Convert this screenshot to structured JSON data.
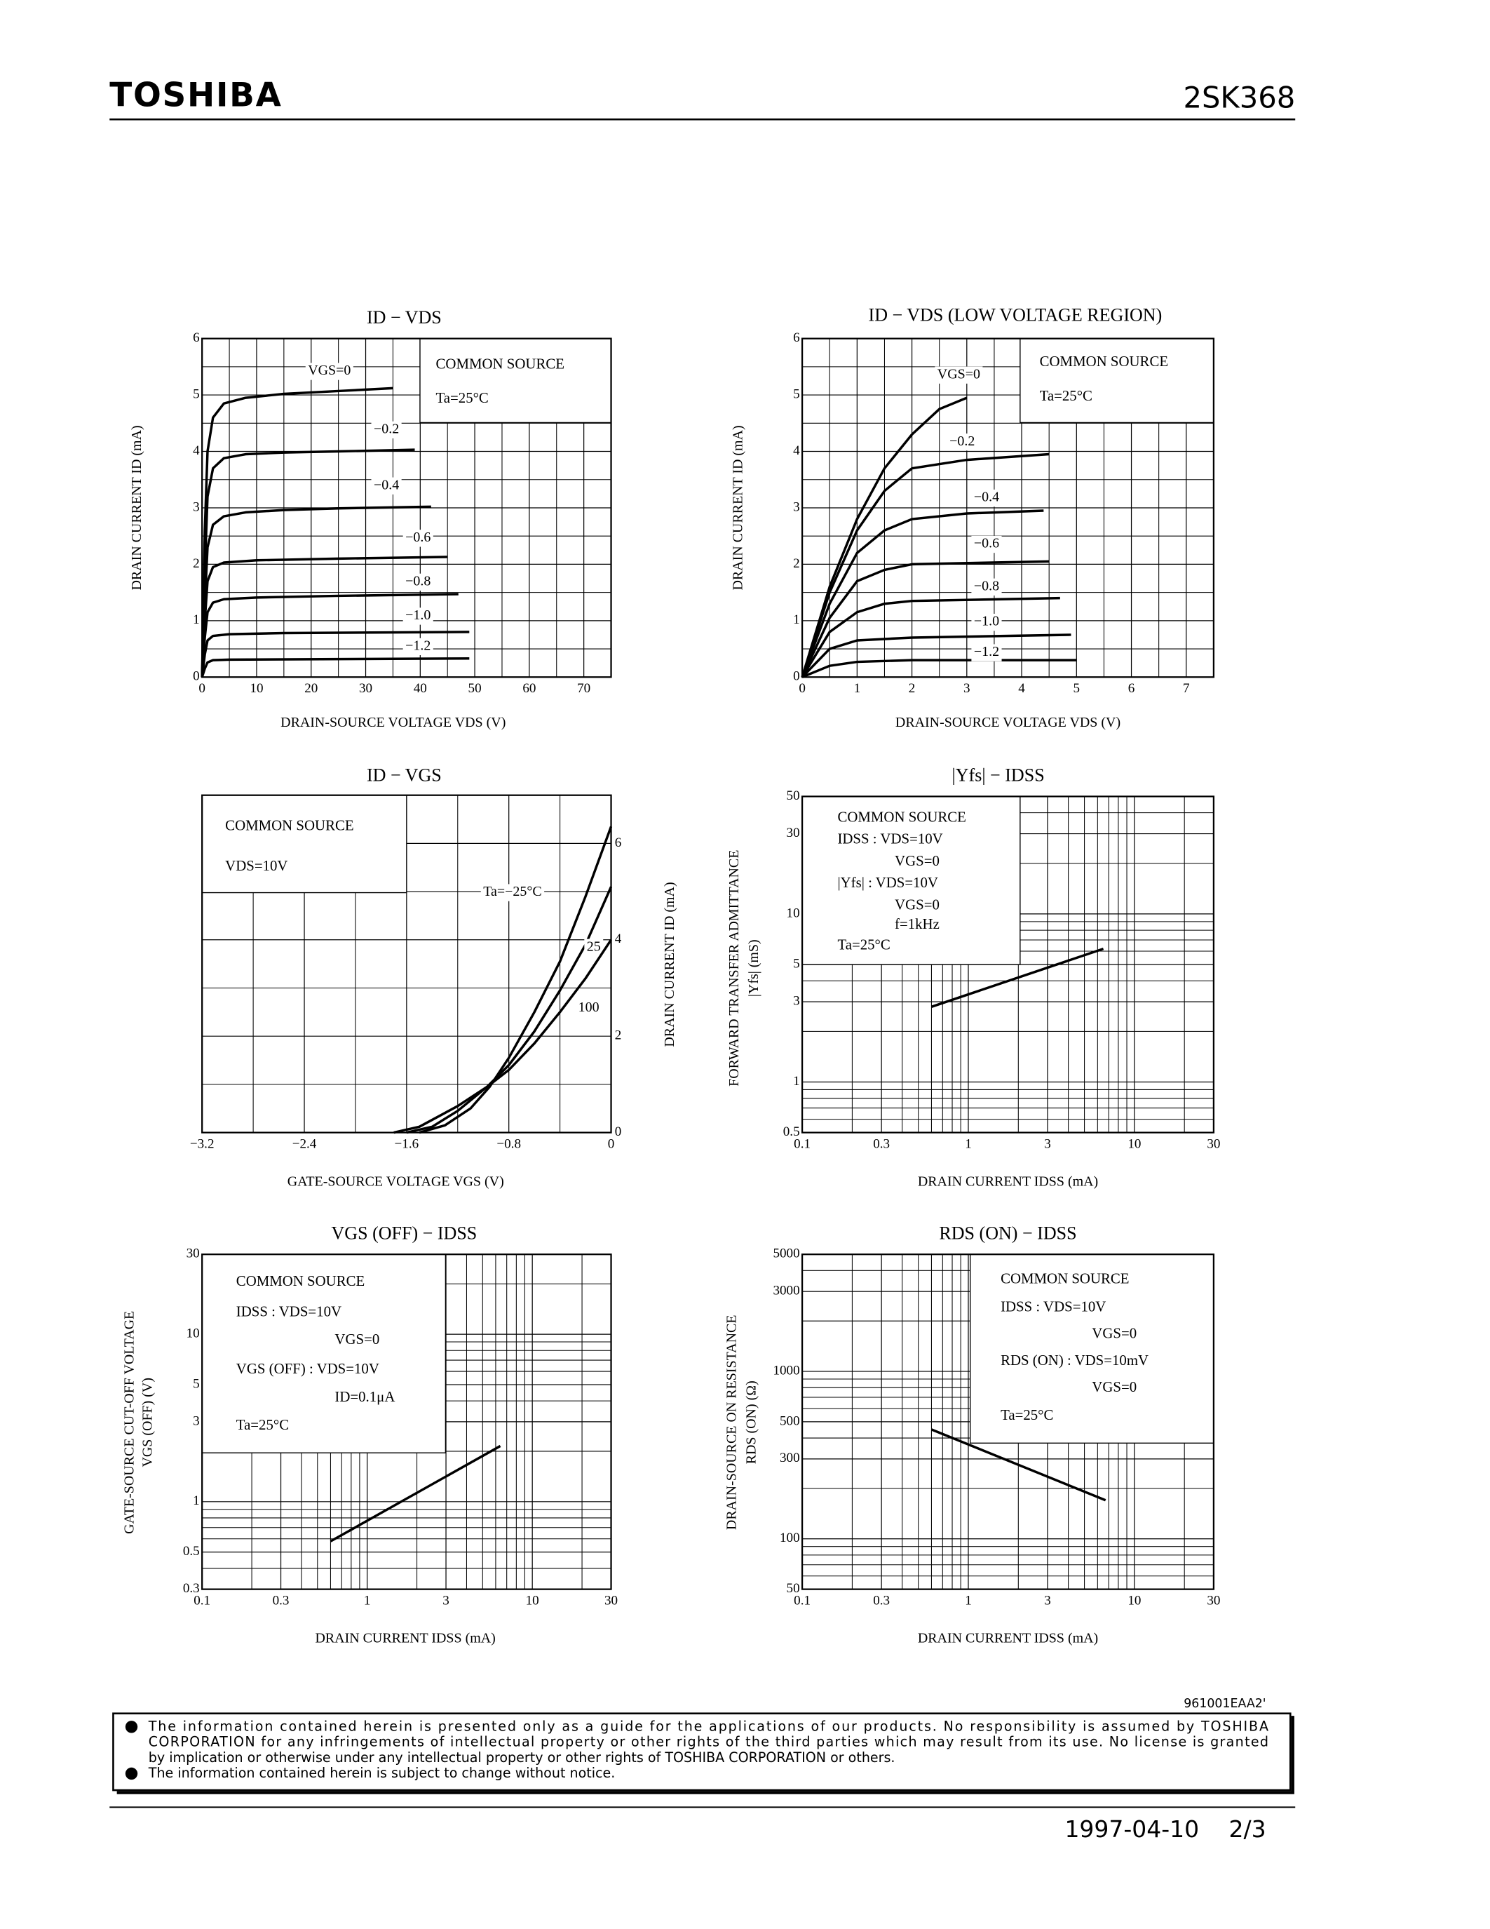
{
  "header": {
    "brand": "TOSHIBA",
    "part": "2SK368"
  },
  "chart_data": [
    {
      "type": "line",
      "title": "ID − VDS",
      "xlabel": "DRAIN-SOURCE VOLTAGE VDS (V)",
      "ylabel": [
        "DRAIN CURRENT ID (mA)"
      ],
      "annotations": [
        "COMMON SOURCE",
        "Ta=25°C"
      ],
      "xlim": [
        0,
        75
      ],
      "ylim": [
        0,
        6
      ],
      "xticks": [
        0,
        10,
        20,
        30,
        40,
        50,
        60,
        70
      ],
      "yticks": [
        0,
        1,
        2,
        3,
        4,
        5,
        6
      ],
      "xscale": "linear",
      "yscale": "linear",
      "grid": true,
      "yaxis_side": "left",
      "series": [
        {
          "name": "VGS=0",
          "color": "#000000",
          "x": [
            0,
            0.5,
            1,
            2,
            4,
            8,
            15,
            25,
            35
          ],
          "values": [
            0,
            2.6,
            4.0,
            4.6,
            4.85,
            4.95,
            5.02,
            5.07,
            5.12
          ]
        },
        {
          "name": "−0.2",
          "color": "#000000",
          "x": [
            0,
            0.5,
            1,
            2,
            4,
            8,
            15,
            25,
            39
          ],
          "values": [
            0,
            1.9,
            3.2,
            3.7,
            3.88,
            3.95,
            3.98,
            4.0,
            4.03
          ]
        },
        {
          "name": "−0.4",
          "color": "#000000",
          "x": [
            0,
            0.5,
            1,
            2,
            4,
            8,
            15,
            25,
            42
          ],
          "values": [
            0,
            1.3,
            2.3,
            2.7,
            2.85,
            2.92,
            2.96,
            2.99,
            3.02
          ]
        },
        {
          "name": "−0.6",
          "color": "#000000",
          "x": [
            0,
            0.5,
            1,
            2,
            4,
            10,
            25,
            45
          ],
          "values": [
            0,
            1.0,
            1.7,
            1.95,
            2.03,
            2.07,
            2.1,
            2.13
          ]
        },
        {
          "name": "−0.8",
          "color": "#000000",
          "x": [
            0,
            0.5,
            1,
            2,
            4,
            10,
            25,
            47
          ],
          "values": [
            0,
            0.7,
            1.15,
            1.32,
            1.38,
            1.41,
            1.44,
            1.47
          ]
        },
        {
          "name": "−1.0",
          "color": "#000000",
          "x": [
            0,
            0.5,
            1,
            2,
            5,
            15,
            49
          ],
          "values": [
            0,
            0.4,
            0.65,
            0.73,
            0.76,
            0.78,
            0.8
          ]
        },
        {
          "name": "−1.2",
          "color": "#000000",
          "x": [
            0,
            0.5,
            1,
            2,
            5,
            49
          ],
          "values": [
            0,
            0.15,
            0.26,
            0.3,
            0.31,
            0.33
          ]
        }
      ]
    },
    {
      "type": "line",
      "title": "ID − VDS (LOW VOLTAGE REGION)",
      "xlabel": "DRAIN-SOURCE VOLTAGE VDS (V)",
      "ylabel": [
        "DRAIN CURRENT ID (mA)"
      ],
      "annotations": [
        "COMMON SOURCE",
        "Ta=25°C"
      ],
      "xlim": [
        0,
        7.5
      ],
      "ylim": [
        0,
        6
      ],
      "xticks": [
        0,
        1,
        2,
        3,
        4,
        5,
        6,
        7
      ],
      "yticks": [
        0,
        1,
        2,
        3,
        4,
        5,
        6
      ],
      "xscale": "linear",
      "yscale": "linear",
      "grid": true,
      "yaxis_side": "left",
      "series": [
        {
          "name": "VGS=0",
          "color": "#000000",
          "x": [
            0,
            0.5,
            1,
            1.5,
            2,
            2.5,
            3
          ],
          "values": [
            0,
            1.6,
            2.8,
            3.7,
            4.3,
            4.75,
            4.95
          ]
        },
        {
          "name": "−0.2",
          "color": "#000000",
          "x": [
            0,
            0.5,
            1,
            1.5,
            2,
            3,
            4.5
          ],
          "values": [
            0,
            1.5,
            2.6,
            3.3,
            3.7,
            3.85,
            3.95
          ]
        },
        {
          "name": "−0.4",
          "color": "#000000",
          "x": [
            0,
            0.5,
            1,
            1.5,
            2,
            3,
            4.4
          ],
          "values": [
            0,
            1.3,
            2.2,
            2.6,
            2.8,
            2.9,
            2.95
          ]
        },
        {
          "name": "−0.6",
          "color": "#000000",
          "x": [
            0,
            0.5,
            1,
            1.5,
            2,
            4.5
          ],
          "values": [
            0,
            1.05,
            1.7,
            1.9,
            2.0,
            2.05
          ]
        },
        {
          "name": "−0.8",
          "color": "#000000",
          "x": [
            0,
            0.5,
            1,
            1.5,
            2,
            4.7
          ],
          "values": [
            0,
            0.8,
            1.15,
            1.3,
            1.35,
            1.4
          ]
        },
        {
          "name": "−1.0",
          "color": "#000000",
          "x": [
            0,
            0.5,
            1,
            2,
            4.9
          ],
          "values": [
            0,
            0.5,
            0.65,
            0.7,
            0.75
          ]
        },
        {
          "name": "−1.2",
          "color": "#000000",
          "x": [
            0,
            0.5,
            1,
            2,
            5
          ],
          "values": [
            0,
            0.2,
            0.27,
            0.3,
            0.3
          ]
        }
      ]
    },
    {
      "type": "line",
      "title": "ID − VGS",
      "xlabel": "GATE-SOURCE VOLTAGE VGS (V)",
      "ylabel": [
        "DRAIN CURRENT ID (mA)"
      ],
      "annotations": [
        "COMMON SOURCE",
        "VDS=10V"
      ],
      "xlim": [
        -3.2,
        0
      ],
      "ylim": [
        0,
        7
      ],
      "xticks": [
        {
          "value": -3.2,
          "label": "−3.2"
        },
        {
          "value": -2.4,
          "label": "−2.4"
        },
        {
          "value": -1.6,
          "label": "−1.6"
        },
        {
          "value": -0.8,
          "label": "−0.8"
        },
        0
      ],
      "yticks": [
        0,
        2,
        4,
        6
      ],
      "xscale": "linear",
      "yscale": "linear",
      "grid": true,
      "yaxis_side": "right",
      "series": [
        {
          "name": "Ta=−25°C",
          "color": "#000000",
          "x": [
            -1.5,
            -1.3,
            -1.1,
            -0.95,
            -0.8,
            -0.6,
            -0.4,
            -0.2,
            0
          ],
          "values": [
            0,
            0.15,
            0.5,
            0.95,
            1.55,
            2.5,
            3.55,
            4.9,
            6.35
          ]
        },
        {
          "name": "25",
          "color": "#000000",
          "x": [
            -1.6,
            -1.4,
            -1.2,
            -0.97,
            -0.8,
            -0.6,
            -0.4,
            -0.2,
            0
          ],
          "values": [
            0,
            0.12,
            0.45,
            0.95,
            1.4,
            2.1,
            2.95,
            3.9,
            5.1
          ]
        },
        {
          "name": "100",
          "color": "#000000",
          "x": [
            -1.7,
            -1.5,
            -1.2,
            -0.97,
            -0.8,
            -0.6,
            -0.4,
            -0.2,
            0
          ],
          "values": [
            0,
            0.12,
            0.55,
            0.95,
            1.3,
            1.85,
            2.5,
            3.2,
            4.0
          ]
        }
      ]
    },
    {
      "type": "line",
      "title": "|Yfs| − IDSS",
      "xlabel": "DRAIN CURRENT IDSS (mA)",
      "ylabel": [
        "FORWARD TRANSFER ADMITTANCE",
        "|Yfs| (mS)"
      ],
      "annotations": [
        "COMMON SOURCE",
        "IDSS : VDS=10V",
        "VGS=0",
        "|Yfs| : VDS=10V",
        "VGS=0",
        "f=1kHz",
        "Ta=25°C"
      ],
      "xlim": [
        0.1,
        30
      ],
      "ylim": [
        0.5,
        50
      ],
      "xticks": [
        0.1,
        0.3,
        1,
        3,
        10,
        30
      ],
      "yticks": [
        0.5,
        1,
        3,
        5,
        10,
        30,
        50
      ],
      "xscale": "log",
      "yscale": "log",
      "grid": true,
      "yaxis_side": "left",
      "series": [
        {
          "color": "#000000",
          "x": [
            0.6,
            6.5
          ],
          "values": [
            2.8,
            6.2
          ]
        }
      ]
    },
    {
      "type": "line",
      "title": "VGS (OFF) − IDSS",
      "xlabel": "DRAIN CURRENT IDSS (mA)",
      "ylabel": [
        "GATE-SOURCE CUT-OFF VOLTAGE",
        "VGS (OFF) (V)"
      ],
      "annotations": [
        "COMMON SOURCE",
        "IDSS : VDS=10V",
        "VGS=0",
        "VGS (OFF) : VDS=10V",
        "ID=0.1μA",
        "Ta=25°C"
      ],
      "xlim": [
        0.1,
        30
      ],
      "ylim": [
        0.3,
        30
      ],
      "xticks": [
        0.1,
        0.3,
        1,
        3,
        10,
        30
      ],
      "yticks": [
        0.3,
        0.5,
        1,
        3,
        5,
        10,
        30
      ],
      "xscale": "log",
      "yscale": "log",
      "grid": true,
      "yaxis_side": "left",
      "series": [
        {
          "color": "#000000",
          "x": [
            0.6,
            6.4
          ],
          "values": [
            0.58,
            2.15
          ]
        }
      ]
    },
    {
      "type": "line",
      "title": "RDS (ON) − IDSS",
      "xlabel": "DRAIN CURRENT IDSS (mA)",
      "ylabel": [
        "DRAIN-SOURCE ON RESISTANCE",
        "RDS (ON) (Ω)"
      ],
      "annotations": [
        "COMMON SOURCE",
        "IDSS : VDS=10V",
        "VGS=0",
        "RDS (ON) : VDS=10mV",
        "VGS=0",
        "Ta=25°C"
      ],
      "xlim": [
        0.1,
        30
      ],
      "ylim": [
        50,
        5000
      ],
      "xticks": [
        0.1,
        0.3,
        1,
        3,
        10,
        30
      ],
      "yticks": [
        50,
        100,
        300,
        500,
        1000,
        3000,
        5000
      ],
      "xscale": "log",
      "yscale": "log",
      "grid": true,
      "yaxis_side": "left",
      "series": [
        {
          "color": "#000000",
          "x": [
            0.6,
            6.7
          ],
          "values": [
            450,
            170
          ]
        }
      ]
    }
  ],
  "footer": {
    "code": "961001EAA2'",
    "notice": [
      [
        "The information contained herein is presented only as a guide for the applications of our products. No responsibility is assumed by TOSHIBA",
        "CORPORATION for any infringements of intellectual property or other rights of the third parties which may result from its use. No license is granted",
        "by implication or otherwise under any intellectual property or other rights of TOSHIBA CORPORATION or others."
      ],
      [
        "The information contained herein is subject to change without notice."
      ]
    ],
    "date": "1997-04-10",
    "page": "2/3"
  }
}
